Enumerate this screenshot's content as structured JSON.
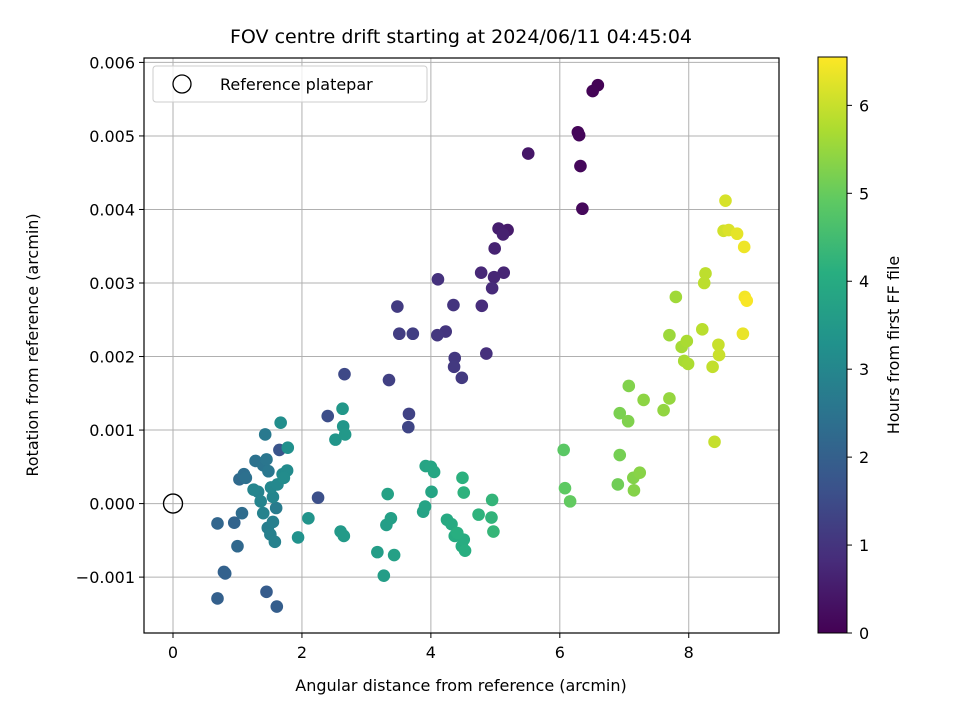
{
  "chart_data": {
    "type": "scatter",
    "title": "FOV centre drift starting at 2024/06/11 04:45:04",
    "xlabel": "Angular distance from reference (arcmin)",
    "ylabel": "Rotation from reference (arcmin)",
    "xlim": [
      -0.45,
      9.4
    ],
    "ylim": [
      -0.00176,
      0.00606
    ],
    "xticks": [
      0,
      2,
      4,
      6,
      8
    ],
    "yticks": [
      -0.001,
      0.0,
      0.001,
      0.002,
      0.003,
      0.004,
      0.005,
      0.006
    ],
    "ytick_labels": [
      "−0.001",
      "0.000",
      "0.001",
      "0.002",
      "0.003",
      "0.004",
      "0.005",
      "0.006"
    ],
    "grid": true,
    "legend": {
      "position": "top-left",
      "entries": [
        "Reference platepar"
      ]
    },
    "reference_point": {
      "label": "Reference platepar",
      "x": 0.0,
      "y": 0.0
    },
    "colorbar": {
      "label": "Hours from first FF file",
      "colormap": "viridis",
      "range": [
        0,
        6.55
      ],
      "ticks": [
        0,
        1,
        2,
        3,
        4,
        5,
        6
      ]
    },
    "points": [
      {
        "x": 6.59,
        "y": 0.00569,
        "c": 0.03
      },
      {
        "x": 6.51,
        "y": 0.00561,
        "c": 0.05
      },
      {
        "x": 6.28,
        "y": 0.00505,
        "c": 0.08
      },
      {
        "x": 6.3,
        "y": 0.00501,
        "c": 0.1
      },
      {
        "x": 6.32,
        "y": 0.00459,
        "c": 0.12
      },
      {
        "x": 6.35,
        "y": 0.00401,
        "c": 0.15
      },
      {
        "x": 5.51,
        "y": 0.00476,
        "c": 0.4
      },
      {
        "x": 5.19,
        "y": 0.00372,
        "c": 0.5
      },
      {
        "x": 5.05,
        "y": 0.00374,
        "c": 0.55
      },
      {
        "x": 5.12,
        "y": 0.00366,
        "c": 0.6
      },
      {
        "x": 4.99,
        "y": 0.00347,
        "c": 0.65
      },
      {
        "x": 5.13,
        "y": 0.00314,
        "c": 0.7
      },
      {
        "x": 4.98,
        "y": 0.00308,
        "c": 0.72
      },
      {
        "x": 4.78,
        "y": 0.00314,
        "c": 0.75
      },
      {
        "x": 4.95,
        "y": 0.00293,
        "c": 0.8
      },
      {
        "x": 4.79,
        "y": 0.00269,
        "c": 0.85
      },
      {
        "x": 4.86,
        "y": 0.00204,
        "c": 0.9
      },
      {
        "x": 4.11,
        "y": 0.00305,
        "c": 0.95
      },
      {
        "x": 4.35,
        "y": 0.0027,
        "c": 1.0
      },
      {
        "x": 4.23,
        "y": 0.00234,
        "c": 1.02
      },
      {
        "x": 4.1,
        "y": 0.00229,
        "c": 1.05
      },
      {
        "x": 4.37,
        "y": 0.00198,
        "c": 1.07
      },
      {
        "x": 4.36,
        "y": 0.00186,
        "c": 1.1
      },
      {
        "x": 4.48,
        "y": 0.00171,
        "c": 1.12
      },
      {
        "x": 3.48,
        "y": 0.00268,
        "c": 1.15
      },
      {
        "x": 3.51,
        "y": 0.00231,
        "c": 1.18
      },
      {
        "x": 3.72,
        "y": 0.00231,
        "c": 1.2
      },
      {
        "x": 3.35,
        "y": 0.00168,
        "c": 1.25
      },
      {
        "x": 3.66,
        "y": 0.00122,
        "c": 1.3
      },
      {
        "x": 3.65,
        "y": 0.00104,
        "c": 1.35
      },
      {
        "x": 2.66,
        "y": 0.00176,
        "c": 1.45
      },
      {
        "x": 2.4,
        "y": 0.00119,
        "c": 1.55
      },
      {
        "x": 2.25,
        "y": 8e-05,
        "c": 1.6
      },
      {
        "x": 1.65,
        "y": 0.00073,
        "c": 1.7
      },
      {
        "x": 1.45,
        "y": -0.0012,
        "c": 1.9
      },
      {
        "x": 1.61,
        "y": -0.0014,
        "c": 1.95
      },
      {
        "x": 0.69,
        "y": -0.00129,
        "c": 2.0
      },
      {
        "x": 0.79,
        "y": -0.00093,
        "c": 2.02
      },
      {
        "x": 0.81,
        "y": -0.00095,
        "c": 2.05
      },
      {
        "x": 0.95,
        "y": -0.00026,
        "c": 2.1
      },
      {
        "x": 0.69,
        "y": -0.00027,
        "c": 2.15
      },
      {
        "x": 1.0,
        "y": -0.00058,
        "c": 2.2
      },
      {
        "x": 1.03,
        "y": 0.00033,
        "c": 2.25
      },
      {
        "x": 1.07,
        "y": -0.00013,
        "c": 2.3
      },
      {
        "x": 1.1,
        "y": 0.0004,
        "c": 2.35
      },
      {
        "x": 1.13,
        "y": 0.00035,
        "c": 2.4
      },
      {
        "x": 1.28,
        "y": 0.00058,
        "c": 2.45
      },
      {
        "x": 1.4,
        "y": 0.00052,
        "c": 2.5
      },
      {
        "x": 1.45,
        "y": 0.0006,
        "c": 2.55
      },
      {
        "x": 1.48,
        "y": 0.00044,
        "c": 2.6
      },
      {
        "x": 1.43,
        "y": 0.00094,
        "c": 2.65
      },
      {
        "x": 1.6,
        "y": -6e-05,
        "c": 2.7
      },
      {
        "x": 1.47,
        "y": -0.00033,
        "c": 2.75
      },
      {
        "x": 1.55,
        "y": -0.00025,
        "c": 2.8
      },
      {
        "x": 1.51,
        "y": -0.00042,
        "c": 2.82
      },
      {
        "x": 1.58,
        "y": -0.00052,
        "c": 2.85
      },
      {
        "x": 1.4,
        "y": -0.00013,
        "c": 2.88
      },
      {
        "x": 1.32,
        "y": 0.00016,
        "c": 2.9
      },
      {
        "x": 1.36,
        "y": 3e-05,
        "c": 2.92
      },
      {
        "x": 1.25,
        "y": 0.00019,
        "c": 2.95
      },
      {
        "x": 1.55,
        "y": 9e-05,
        "c": 2.97
      },
      {
        "x": 1.52,
        "y": 0.00022,
        "c": 3.0
      },
      {
        "x": 1.62,
        "y": 0.00026,
        "c": 3.05
      },
      {
        "x": 1.7,
        "y": 0.0004,
        "c": 3.1
      },
      {
        "x": 1.77,
        "y": 0.00045,
        "c": 3.12
      },
      {
        "x": 1.72,
        "y": 0.00035,
        "c": 3.15
      },
      {
        "x": 1.67,
        "y": 0.0011,
        "c": 3.2
      },
      {
        "x": 1.78,
        "y": 0.00076,
        "c": 3.25
      },
      {
        "x": 1.94,
        "y": -0.00046,
        "c": 3.3
      },
      {
        "x": 2.1,
        "y": -0.0002,
        "c": 3.35
      },
      {
        "x": 2.52,
        "y": 0.00087,
        "c": 3.4
      },
      {
        "x": 2.64,
        "y": 0.00105,
        "c": 3.42
      },
      {
        "x": 2.63,
        "y": 0.00129,
        "c": 3.45
      },
      {
        "x": 2.67,
        "y": 0.00094,
        "c": 3.48
      },
      {
        "x": 2.6,
        "y": -0.00038,
        "c": 3.5
      },
      {
        "x": 2.65,
        "y": -0.00044,
        "c": 3.52
      },
      {
        "x": 3.17,
        "y": -0.00066,
        "c": 3.6
      },
      {
        "x": 3.27,
        "y": -0.00098,
        "c": 3.62
      },
      {
        "x": 3.31,
        "y": -0.00029,
        "c": 3.65
      },
      {
        "x": 3.38,
        "y": -0.0002,
        "c": 3.68
      },
      {
        "x": 3.43,
        "y": -0.0007,
        "c": 3.7
      },
      {
        "x": 3.33,
        "y": 0.00013,
        "c": 3.72
      },
      {
        "x": 3.88,
        "y": -0.00011,
        "c": 3.75
      },
      {
        "x": 3.91,
        "y": -4e-05,
        "c": 3.78
      },
      {
        "x": 4.01,
        "y": 0.00016,
        "c": 3.8
      },
      {
        "x": 3.92,
        "y": 0.00051,
        "c": 3.82
      },
      {
        "x": 4.0,
        "y": 0.0005,
        "c": 3.85
      },
      {
        "x": 4.05,
        "y": 0.00043,
        "c": 3.88
      },
      {
        "x": 4.25,
        "y": -0.00022,
        "c": 3.95
      },
      {
        "x": 4.32,
        "y": -0.00028,
        "c": 3.97
      },
      {
        "x": 4.37,
        "y": -0.00044,
        "c": 4.0
      },
      {
        "x": 4.48,
        "y": -0.00058,
        "c": 4.02
      },
      {
        "x": 4.51,
        "y": -0.00049,
        "c": 4.05
      },
      {
        "x": 4.53,
        "y": -0.00064,
        "c": 4.08
      },
      {
        "x": 4.41,
        "y": -0.0004,
        "c": 4.1
      },
      {
        "x": 4.49,
        "y": 0.00035,
        "c": 4.15
      },
      {
        "x": 4.51,
        "y": 0.00015,
        "c": 4.18
      },
      {
        "x": 4.74,
        "y": -0.00015,
        "c": 4.2
      },
      {
        "x": 4.94,
        "y": -0.00019,
        "c": 4.25
      },
      {
        "x": 4.95,
        "y": 5e-05,
        "c": 4.28
      },
      {
        "x": 4.97,
        "y": -0.00038,
        "c": 4.3
      },
      {
        "x": 6.06,
        "y": 0.00073,
        "c": 4.85
      },
      {
        "x": 6.08,
        "y": 0.00021,
        "c": 4.9
      },
      {
        "x": 6.16,
        "y": 3e-05,
        "c": 4.95
      },
      {
        "x": 6.9,
        "y": 0.00026,
        "c": 5.1
      },
      {
        "x": 6.93,
        "y": 0.00066,
        "c": 5.15
      },
      {
        "x": 6.93,
        "y": 0.00123,
        "c": 5.2
      },
      {
        "x": 7.06,
        "y": 0.00112,
        "c": 5.25
      },
      {
        "x": 7.07,
        "y": 0.0016,
        "c": 5.28
      },
      {
        "x": 7.14,
        "y": 0.00035,
        "c": 5.3
      },
      {
        "x": 7.15,
        "y": 0.00018,
        "c": 5.32
      },
      {
        "x": 7.24,
        "y": 0.00042,
        "c": 5.35
      },
      {
        "x": 7.3,
        "y": 0.00141,
        "c": 5.4
      },
      {
        "x": 7.61,
        "y": 0.00127,
        "c": 5.45
      },
      {
        "x": 7.7,
        "y": 0.00143,
        "c": 5.48
      },
      {
        "x": 7.7,
        "y": 0.00229,
        "c": 5.55
      },
      {
        "x": 7.8,
        "y": 0.00281,
        "c": 5.6
      },
      {
        "x": 7.89,
        "y": 0.00213,
        "c": 5.65
      },
      {
        "x": 7.93,
        "y": 0.00194,
        "c": 5.68
      },
      {
        "x": 7.97,
        "y": 0.00221,
        "c": 5.7
      },
      {
        "x": 7.99,
        "y": 0.0019,
        "c": 5.72
      },
      {
        "x": 8.21,
        "y": 0.00237,
        "c": 5.85
      },
      {
        "x": 8.24,
        "y": 0.003,
        "c": 5.88
      },
      {
        "x": 8.26,
        "y": 0.00313,
        "c": 5.9
      },
      {
        "x": 8.37,
        "y": 0.00186,
        "c": 5.95
      },
      {
        "x": 8.4,
        "y": 0.00084,
        "c": 5.98
      },
      {
        "x": 8.46,
        "y": 0.00216,
        "c": 6.0
      },
      {
        "x": 8.47,
        "y": 0.00202,
        "c": 6.02
      },
      {
        "x": 8.54,
        "y": 0.00371,
        "c": 6.1
      },
      {
        "x": 8.57,
        "y": 0.00412,
        "c": 6.15
      },
      {
        "x": 8.62,
        "y": 0.00372,
        "c": 6.2
      },
      {
        "x": 8.75,
        "y": 0.00367,
        "c": 6.3
      },
      {
        "x": 8.84,
        "y": 0.00231,
        "c": 6.35
      },
      {
        "x": 8.86,
        "y": 0.00349,
        "c": 6.4
      },
      {
        "x": 8.87,
        "y": 0.00281,
        "c": 6.45
      },
      {
        "x": 8.9,
        "y": 0.00276,
        "c": 6.5
      }
    ]
  }
}
